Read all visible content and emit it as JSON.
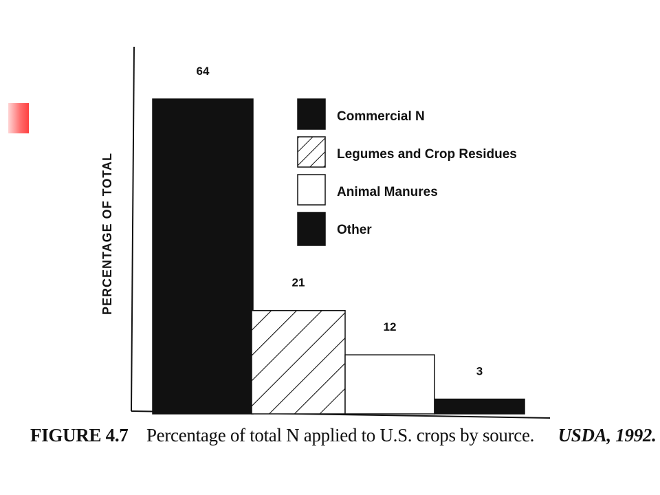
{
  "chart_data": {
    "type": "bar",
    "categories": [
      "Commercial N",
      "Legumes and Crop Residues",
      "Animal Manures",
      "Other"
    ],
    "values": [
      64,
      21,
      12,
      3
    ],
    "data_labels": [
      "64",
      "21",
      "12",
      "3"
    ],
    "ylabel": "PERCENTAGE OF TOTAL",
    "xlabel": "",
    "ylim": [
      0,
      64
    ],
    "grid": false,
    "legend_position": "top-right",
    "legend": [
      {
        "label": "Commercial N",
        "fill": "solid",
        "color": "#111111"
      },
      {
        "label": "Legumes and Crop Residues",
        "fill": "hatch",
        "color": "#111111"
      },
      {
        "label": "Animal Manures",
        "fill": "empty",
        "color": "#ffffff"
      },
      {
        "label": "Other",
        "fill": "solid",
        "color": "#111111"
      }
    ],
    "bar_fills": [
      "solid",
      "hatch",
      "empty",
      "solid"
    ]
  },
  "caption": {
    "figure": "FIGURE 4.7",
    "text": "Percentage of total N applied to U.S. crops by source.",
    "source": "USDA, 1992."
  },
  "colors": {
    "ink": "#111111",
    "accent": "#ff5050"
  }
}
